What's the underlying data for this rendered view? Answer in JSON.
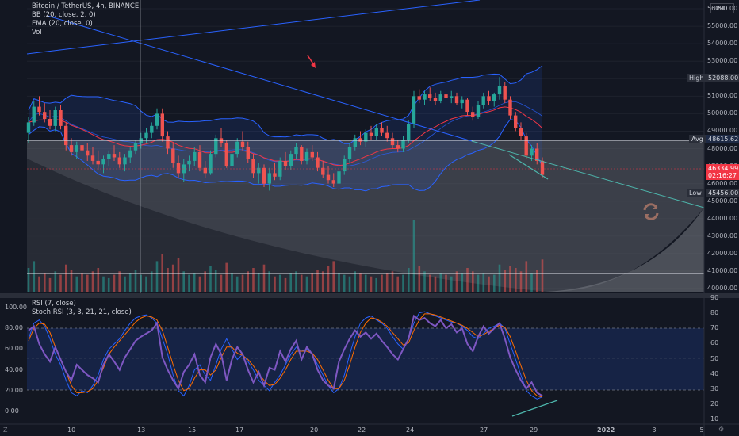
{
  "legend": {
    "title": "Bitcoin / TetherUS, 4h, BINANCE",
    "bb": "BB (20, close, 2, 0)",
    "ema": "EMA (20, close, 0)",
    "vol": "Vol"
  },
  "rsi_legend": {
    "rsi": "RSI (7, close)",
    "stoch": "Stoch RSI (3, 3, 21, 21, close)"
  },
  "price_axis": {
    "currency": "USDT",
    "ticks": [
      "56000.00",
      "55000.00",
      "54000.00",
      "53000.00",
      "52000.00",
      "51000.00",
      "50000.00",
      "49000.00",
      "48000.00",
      "47000.00",
      "46000.00",
      "45000.00",
      "44000.00",
      "43000.00",
      "42000.00",
      "41000.00",
      "40000.00"
    ],
    "high_label": "High",
    "high_value": "52088.00",
    "avg_label": "Avg",
    "avg_value": "48615.62",
    "low_label": "Low",
    "low_value": "45456.00",
    "last_price": "46334.99",
    "countdown": "02:16:27"
  },
  "rsi_axis_left": [
    "100.00",
    "80.00",
    "60.00",
    "40.00",
    "20.00",
    "0.00"
  ],
  "rsi_axis_right": [
    "90",
    "80",
    "70",
    "60",
    "50",
    "40",
    "30",
    "20",
    "10"
  ],
  "time_axis": [
    "10",
    "13",
    "15",
    "17",
    "20",
    "22",
    "24",
    "27",
    "29",
    "2022",
    "3",
    "5"
  ],
  "corner": {
    "left": "Z",
    "right": "⚙"
  },
  "colors": {
    "background": "#131722",
    "up": "#26a69a",
    "down": "#ef5350",
    "bb_line": "#2962ff",
    "bb_fill": "#2962ff",
    "ema": "#f23645",
    "rsi": "#7e57c2",
    "stoch_k": "#2962ff",
    "stoch_d": "#ff6d00",
    "trend_teal": "#4db6ac",
    "arrow": "#f23645"
  },
  "chart_data": {
    "type": "candlestick",
    "price_range": [
      40000,
      56300
    ],
    "candles": [
      [
        48900,
        49800,
        48300,
        49500
      ],
      [
        49500,
        50700,
        49300,
        50400
      ],
      [
        50400,
        51000,
        49900,
        50100
      ],
      [
        50100,
        50600,
        49500,
        49700
      ],
      [
        49700,
        50200,
        49100,
        49300
      ],
      [
        49300,
        50400,
        49000,
        50200
      ],
      [
        50200,
        50500,
        49100,
        49300
      ],
      [
        49300,
        49500,
        47900,
        48200
      ],
      [
        48200,
        48600,
        47600,
        47800
      ],
      [
        47800,
        48400,
        47400,
        48200
      ],
      [
        48200,
        48700,
        47700,
        47900
      ],
      [
        47900,
        48300,
        47300,
        47600
      ],
      [
        47600,
        48100,
        47100,
        47300
      ],
      [
        47300,
        47900,
        46800,
        47100
      ],
      [
        47100,
        47600,
        46600,
        47400
      ],
      [
        47400,
        47900,
        47000,
        47700
      ],
      [
        47700,
        48200,
        47300,
        47500
      ],
      [
        47500,
        47800,
        46900,
        47100
      ],
      [
        47100,
        47700,
        46700,
        47500
      ],
      [
        47500,
        48100,
        47200,
        47900
      ],
      [
        47900,
        48500,
        47700,
        48300
      ],
      [
        48300,
        48900,
        48000,
        48600
      ],
      [
        48600,
        49200,
        48300,
        48900
      ],
      [
        48900,
        49500,
        48600,
        49300
      ],
      [
        49300,
        50300,
        49100,
        50000
      ],
      [
        50000,
        50300,
        48400,
        48700
      ],
      [
        48700,
        49000,
        47700,
        48000
      ],
      [
        48000,
        48300,
        46900,
        47200
      ],
      [
        47200,
        47600,
        46300,
        46600
      ],
      [
        46600,
        47400,
        46100,
        47100
      ],
      [
        47100,
        47600,
        46700,
        47300
      ],
      [
        47300,
        48100,
        47000,
        47800
      ],
      [
        47800,
        48200,
        46700,
        46900
      ],
      [
        46900,
        47300,
        46300,
        46600
      ],
      [
        46600,
        47900,
        46500,
        47700
      ],
      [
        47700,
        48800,
        47500,
        48600
      ],
      [
        48600,
        49200,
        48100,
        48300
      ],
      [
        48300,
        48500,
        46900,
        47000
      ],
      [
        47000,
        47900,
        46800,
        47700
      ],
      [
        47700,
        48600,
        47500,
        48400
      ],
      [
        48400,
        49000,
        47900,
        48100
      ],
      [
        48100,
        48400,
        47200,
        47400
      ],
      [
        47400,
        47700,
        46300,
        46600
      ],
      [
        46600,
        47200,
        46000,
        46900
      ],
      [
        46900,
        47100,
        45800,
        46000
      ],
      [
        46000,
        46900,
        45600,
        46600
      ],
      [
        46600,
        47200,
        46200,
        46400
      ],
      [
        46400,
        47500,
        46200,
        47300
      ],
      [
        47300,
        47800,
        46800,
        47000
      ],
      [
        47000,
        47900,
        46800,
        47700
      ],
      [
        47700,
        48300,
        47400,
        48100
      ],
      [
        48100,
        48200,
        47100,
        47300
      ],
      [
        47300,
        48000,
        47100,
        47800
      ],
      [
        47800,
        48200,
        47300,
        47500
      ],
      [
        47500,
        47800,
        46700,
        46900
      ],
      [
        46900,
        47300,
        46300,
        46500
      ],
      [
        46500,
        47000,
        46000,
        46200
      ],
      [
        46200,
        46600,
        45800,
        46000
      ],
      [
        46000,
        46900,
        45900,
        46700
      ],
      [
        46700,
        47600,
        46500,
        47400
      ],
      [
        47400,
        48300,
        47200,
        48100
      ],
      [
        48100,
        48800,
        47900,
        48600
      ],
      [
        48600,
        49000,
        48200,
        48400
      ],
      [
        48400,
        49100,
        48100,
        48900
      ],
      [
        48900,
        49300,
        48500,
        48700
      ],
      [
        48700,
        49400,
        48500,
        49200
      ],
      [
        49200,
        49500,
        48700,
        48900
      ],
      [
        48900,
        49300,
        48400,
        48600
      ],
      [
        48600,
        48900,
        48000,
        48200
      ],
      [
        48200,
        48500,
        47800,
        48000
      ],
      [
        48000,
        48700,
        47800,
        48500
      ],
      [
        48500,
        49600,
        48300,
        49400
      ],
      [
        49400,
        51300,
        49200,
        51000
      ],
      [
        51000,
        51400,
        50600,
        50800
      ],
      [
        50800,
        51300,
        50500,
        51100
      ],
      [
        51100,
        51500,
        50700,
        50900
      ],
      [
        50900,
        51200,
        50500,
        50700
      ],
      [
        50700,
        51300,
        50600,
        51100
      ],
      [
        51100,
        51400,
        50700,
        50900
      ],
      [
        50900,
        51300,
        50600,
        51000
      ],
      [
        51000,
        51200,
        50500,
        50600
      ],
      [
        50600,
        51000,
        50300,
        50800
      ],
      [
        50800,
        50900,
        49900,
        50100
      ],
      [
        50100,
        50400,
        49600,
        49800
      ],
      [
        49800,
        50700,
        49700,
        50500
      ],
      [
        50500,
        51200,
        50300,
        51000
      ],
      [
        51000,
        51300,
        50500,
        50700
      ],
      [
        50700,
        51200,
        50400,
        51100
      ],
      [
        51100,
        52088,
        50800,
        51600
      ],
      [
        51600,
        51800,
        50600,
        50800
      ],
      [
        50800,
        51000,
        49700,
        49900
      ],
      [
        49900,
        50100,
        49000,
        49200
      ],
      [
        49200,
        49500,
        48500,
        48700
      ],
      [
        48700,
        48900,
        47400,
        47600
      ],
      [
        47600,
        48200,
        47300,
        48000
      ],
      [
        48000,
        48300,
        47100,
        47300
      ],
      [
        47300,
        47500,
        46300,
        46500
      ]
    ],
    "volume": [
      14,
      18,
      9,
      11,
      8,
      12,
      10,
      16,
      13,
      9,
      11,
      10,
      12,
      14,
      9,
      8,
      10,
      12,
      9,
      11,
      13,
      10,
      9,
      12,
      18,
      22,
      14,
      16,
      20,
      12,
      10,
      11,
      9,
      12,
      15,
      13,
      10,
      17,
      11,
      9,
      10,
      12,
      14,
      11,
      16,
      12,
      9,
      10,
      8,
      11,
      12,
      10,
      9,
      11,
      13,
      12,
      15,
      18,
      11,
      10,
      9,
      12,
      11,
      10,
      9,
      8,
      10,
      11,
      12,
      9,
      10,
      14,
      42,
      15,
      12,
      10,
      9,
      11,
      10,
      9,
      12,
      11,
      14,
      12,
      10,
      11,
      9,
      10,
      16,
      13,
      15,
      14,
      12,
      18,
      11,
      13,
      19
    ],
    "rsi": [
      78,
      82,
      65,
      55,
      48,
      62,
      50,
      38,
      30,
      45,
      40,
      35,
      32,
      28,
      45,
      55,
      48,
      40,
      52,
      60,
      68,
      72,
      75,
      78,
      85,
      52,
      40,
      30,
      22,
      38,
      45,
      55,
      35,
      28,
      52,
      65,
      55,
      30,
      50,
      62,
      55,
      40,
      28,
      38,
      25,
      42,
      40,
      58,
      48,
      60,
      68,
      50,
      62,
      55,
      40,
      30,
      25,
      22,
      48,
      60,
      70,
      78,
      72,
      76,
      70,
      75,
      68,
      62,
      55,
      50,
      60,
      70,
      92,
      88,
      90,
      85,
      82,
      88,
      80,
      84,
      76,
      80,
      65,
      58,
      72,
      82,
      75,
      80,
      85,
      70,
      52,
      40,
      30,
      22,
      28,
      18,
      15
    ],
    "stoch_k": [
      70,
      85,
      88,
      82,
      70,
      55,
      45,
      30,
      18,
      15,
      20,
      18,
      25,
      35,
      50,
      60,
      65,
      70,
      78,
      85,
      90,
      92,
      93,
      90,
      85,
      70,
      55,
      35,
      20,
      15,
      25,
      40,
      45,
      35,
      30,
      45,
      60,
      70,
      60,
      50,
      55,
      48,
      40,
      30,
      25,
      20,
      28,
      35,
      45,
      55,
      62,
      58,
      60,
      55,
      45,
      35,
      25,
      18,
      22,
      35,
      55,
      72,
      85,
      90,
      92,
      88,
      85,
      80,
      72,
      65,
      60,
      70,
      85,
      95,
      96,
      94,
      92,
      90,
      88,
      86,
      85,
      82,
      78,
      72,
      70,
      75,
      80,
      82,
      85,
      80,
      65,
      50,
      35,
      20,
      15,
      12,
      14
    ],
    "stoch_d": [
      68,
      80,
      85,
      84,
      76,
      62,
      50,
      38,
      25,
      18,
      18,
      19,
      22,
      30,
      42,
      55,
      62,
      68,
      74,
      80,
      86,
      90,
      92,
      91,
      88,
      78,
      62,
      45,
      30,
      20,
      22,
      32,
      40,
      40,
      35,
      40,
      52,
      62,
      62,
      56,
      54,
      50,
      44,
      36,
      30,
      25,
      26,
      32,
      40,
      50,
      58,
      58,
      58,
      56,
      50,
      40,
      30,
      22,
      22,
      30,
      45,
      62,
      76,
      85,
      90,
      89,
      86,
      82,
      76,
      70,
      64,
      66,
      78,
      88,
      94,
      94,
      93,
      91,
      89,
      87,
      85,
      83,
      80,
      76,
      72,
      74,
      77,
      80,
      83,
      81,
      72,
      58,
      44,
      30,
      20,
      15,
      14
    ]
  }
}
